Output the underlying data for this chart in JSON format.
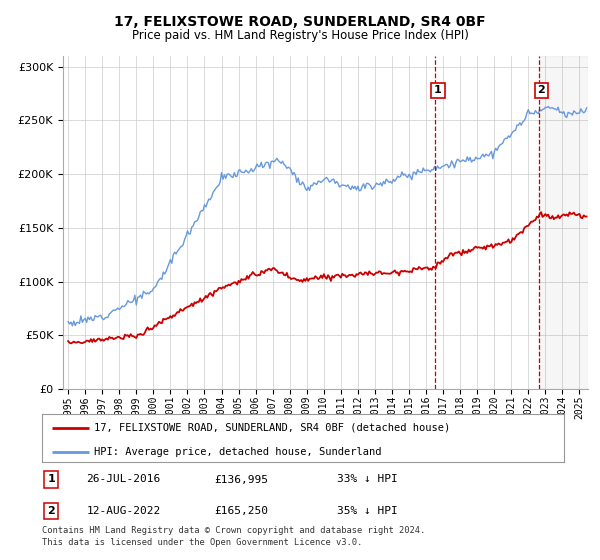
{
  "title": "17, FELIXSTOWE ROAD, SUNDERLAND, SR4 0BF",
  "subtitle": "Price paid vs. HM Land Registry's House Price Index (HPI)",
  "hpi_label": "HPI: Average price, detached house, Sunderland",
  "property_label": "17, FELIXSTOWE ROAD, SUNDERLAND, SR4 0BF (detached house)",
  "footnote_1": "Contains HM Land Registry data © Crown copyright and database right 2024.",
  "footnote_2": "This data is licensed under the Open Government Licence v3.0.",
  "transaction_1": {
    "date": "26-JUL-2016",
    "price": "£136,995",
    "pct": "33% ↓ HPI",
    "label": "1",
    "x": 2016.55
  },
  "transaction_2": {
    "date": "12-AUG-2022",
    "price": "£165,250",
    "pct": "35% ↓ HPI",
    "label": "2",
    "x": 2022.62
  },
  "hpi_color": "#6699DD",
  "property_color": "#CC0000",
  "vline_color": "#CC0000",
  "background_color": "#FFFFFF",
  "ylim": [
    0,
    310000
  ],
  "yticks": [
    0,
    50000,
    100000,
    150000,
    200000,
    250000,
    300000
  ],
  "xlim_start": 1994.7,
  "xlim_end": 2025.5
}
